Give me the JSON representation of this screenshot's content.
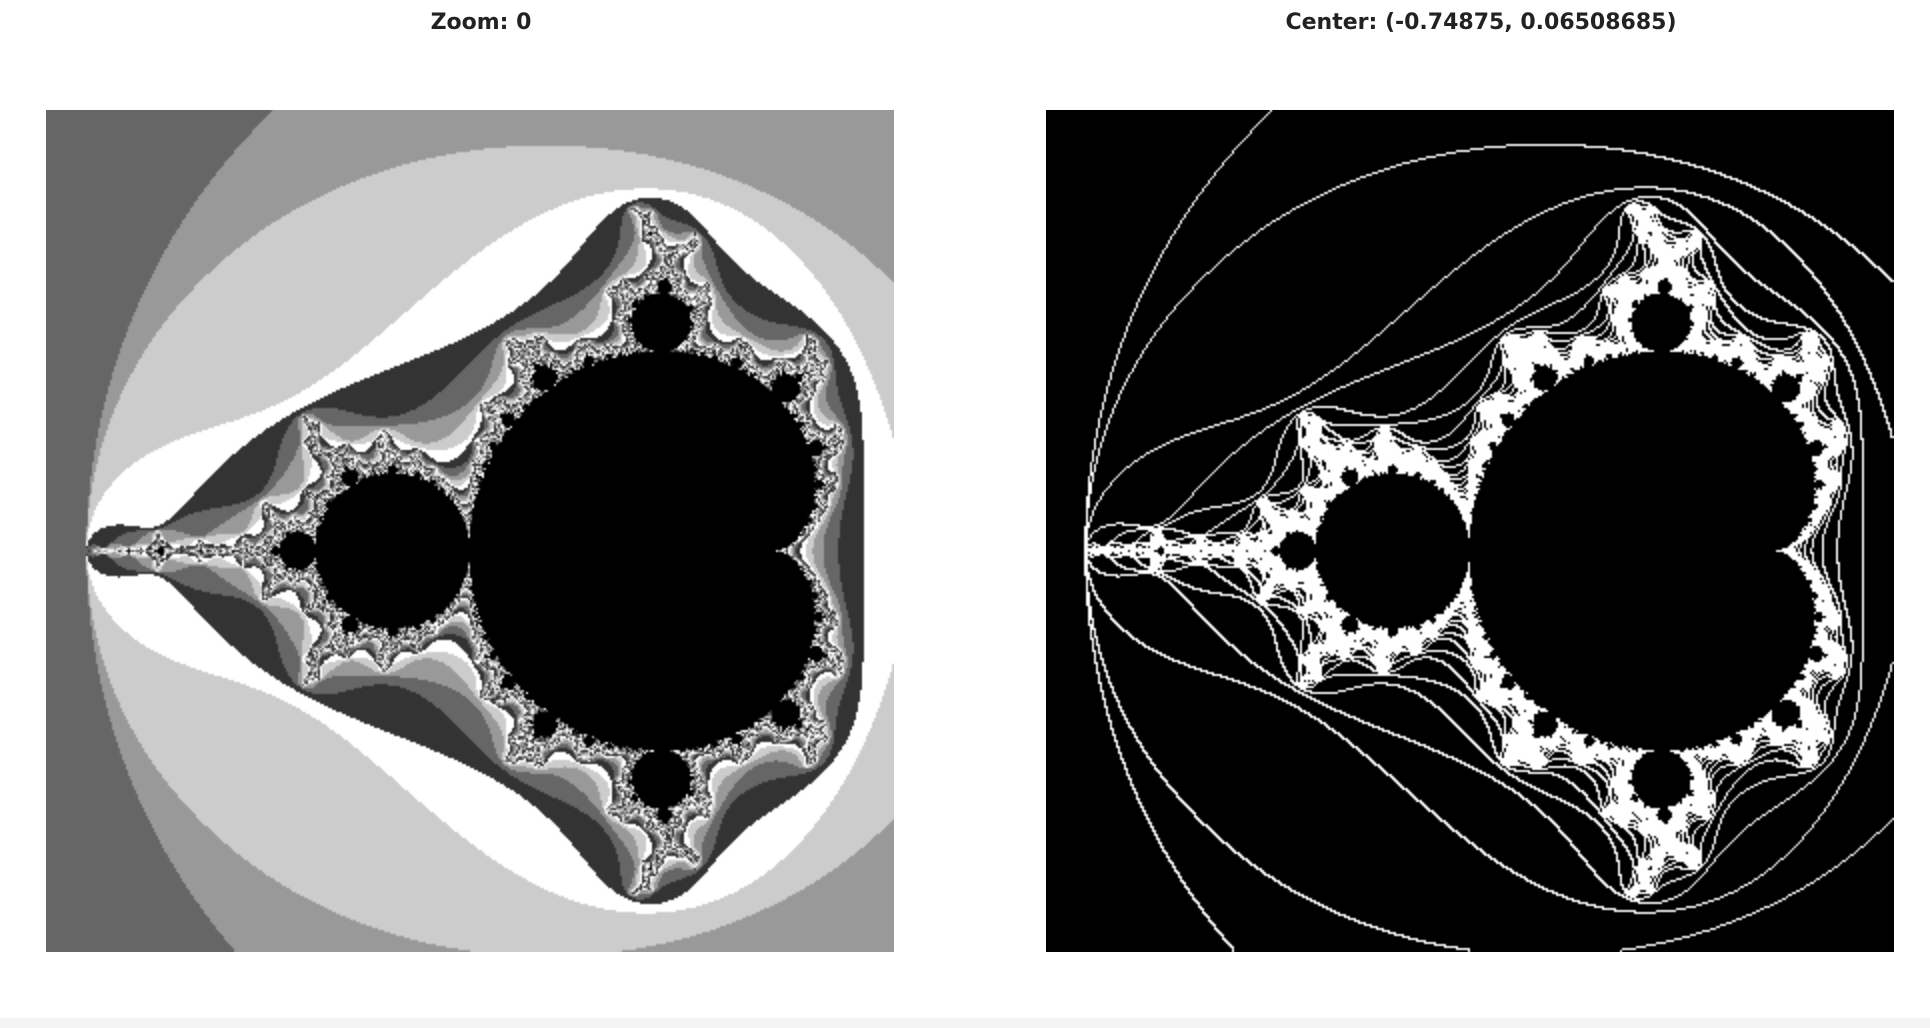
{
  "header": {
    "zoom_label": "Zoom: 0",
    "center_label": "Center: (-0.74875, 0.06508685)"
  },
  "view": {
    "zoom": 0,
    "center_re": -0.74875,
    "center_im": 0.06508685
  },
  "colors": {
    "background": "#ffffff",
    "set_color": "#000000",
    "contour_line": "#ffffff",
    "bands": [
      "#333333",
      "#666666",
      "#999999",
      "#cccccc",
      "#ffffff"
    ]
  }
}
